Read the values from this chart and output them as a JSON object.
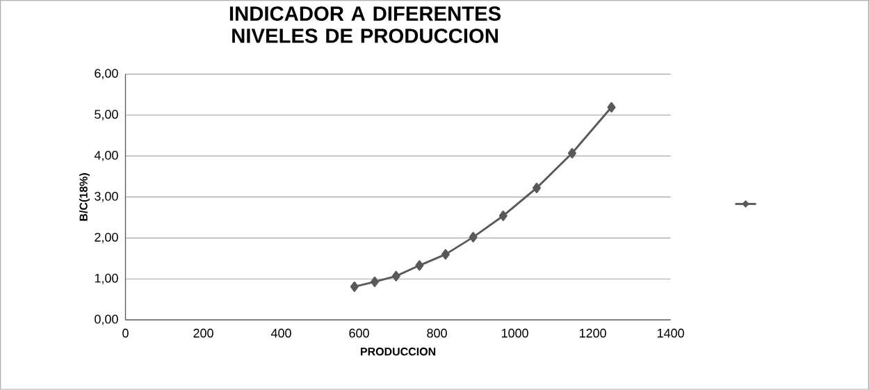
{
  "chart_data": {
    "type": "line",
    "title": "INDICADOR A DIFERENTES NIVELES DE PRODUCCION",
    "xlabel": "PRODUCCION",
    "ylabel": "B/C(18%)",
    "x": [
      588,
      640,
      695,
      755,
      822,
      893,
      970,
      1056,
      1147,
      1248
    ],
    "series": [
      {
        "color": "#595959",
        "values": [
          0.81,
          0.93,
          1.07,
          1.33,
          1.6,
          2.02,
          2.54,
          3.22,
          4.07,
          5.19
        ]
      }
    ],
    "xlim": [
      0,
      1400
    ],
    "xticks": [
      0,
      200,
      400,
      600,
      800,
      1000,
      1200,
      1400
    ],
    "ylim": [
      0,
      6
    ],
    "yticks": [
      {
        "value": 0,
        "label": "0,00"
      },
      {
        "value": 1,
        "label": "1,00"
      },
      {
        "value": 2,
        "label": "2,00"
      },
      {
        "value": 3,
        "label": "3,00"
      },
      {
        "value": 4,
        "label": "4,00"
      },
      {
        "value": 5,
        "label": "5,00"
      },
      {
        "value": 6,
        "label": "6,00"
      }
    ],
    "grid": "y",
    "marker": "diamond",
    "line_style": "solid"
  }
}
